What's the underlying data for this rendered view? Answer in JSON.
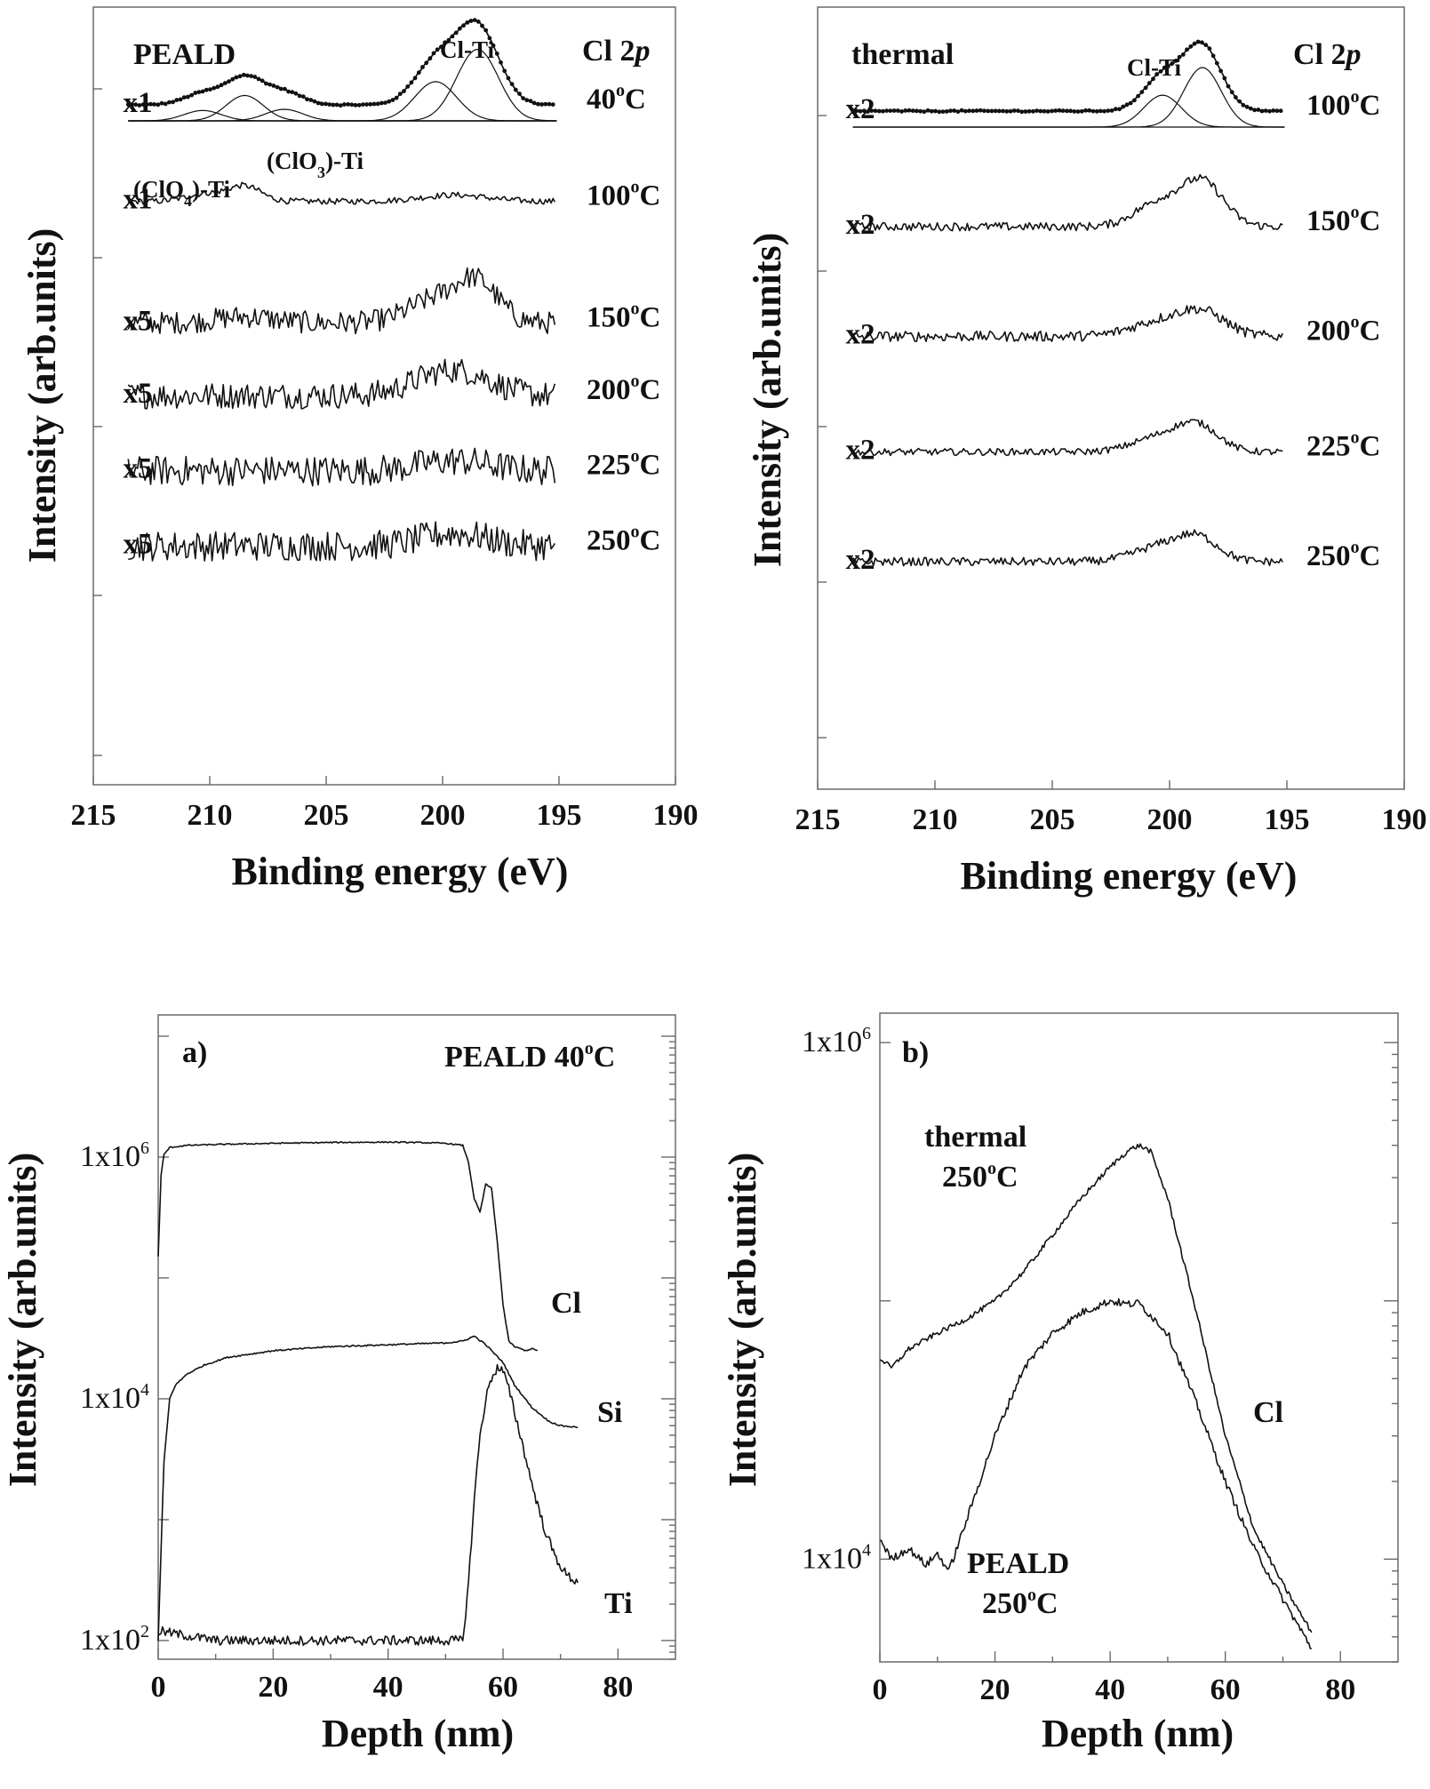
{
  "chart_data": [
    {
      "type": "line",
      "panel": "top-left",
      "xlabel": "Binding energy (eV)",
      "ylabel": "Intensity (arb.units)",
      "xlim": [
        215,
        190
      ],
      "x_ticks": [
        "215",
        "210",
        "205",
        "200",
        "195",
        "190"
      ],
      "title": "PEALD",
      "title_right": "Cl 2p",
      "title_right_main": "Cl 2",
      "title_right_italic": "p",
      "peak_labels": {
        "clti": "Cl-Ti",
        "clo4": {
          "pre": "(ClO",
          "sub": "4",
          "post": ")-Ti"
        },
        "clo3": {
          "pre": "(ClO",
          "sub": "3",
          "post": ")-Ti"
        }
      },
      "series": [
        {
          "name": "40°C",
          "temp": "40",
          "scale": "x1",
          "baseline": 0.78,
          "peaks": [
            [
              198.5,
              0.62,
              0.9
            ],
            [
              200.3,
              0.34,
              0.9
            ],
            [
              208.5,
              0.22,
              0.8
            ],
            [
              210.3,
              0.09,
              0.8
            ],
            [
              206.8,
              0.1,
              0.8
            ]
          ],
          "noise": 0.006
        },
        {
          "name": "100°C",
          "temp": "100",
          "scale": "x1",
          "baseline": 1.55,
          "peaks": [
            [
              208.5,
              0.12,
              0.7
            ],
            [
              210.2,
              0.06,
              0.8
            ],
            [
              199.5,
              0.05,
              1.4
            ]
          ],
          "noise": 0.008
        },
        {
          "name": "150°C",
          "temp": "150",
          "scale": "x5",
          "baseline": 2.52,
          "peaks": [
            [
              198.5,
              0.3,
              0.9
            ],
            [
              200.3,
              0.18,
              1.2
            ],
            [
              208.5,
              0.05,
              1.2
            ]
          ],
          "noise": 0.03
        },
        {
          "name": "200°C",
          "temp": "200",
          "scale": "x5",
          "baseline": 3.1,
          "peaks": [
            [
              198.8,
              0.14,
              1.2
            ],
            [
              200.5,
              0.12,
              1.2
            ]
          ],
          "noise": 0.035
        },
        {
          "name": "225°C",
          "temp": "225",
          "scale": "x5",
          "baseline": 3.7,
          "peaks": [
            [
              199.5,
              0.08,
              1.5
            ]
          ],
          "noise": 0.04
        },
        {
          "name": "250°C",
          "temp": "250",
          "scale": "x5",
          "baseline": 4.3,
          "peaks": [
            [
              199.5,
              0.1,
              1.4
            ]
          ],
          "noise": 0.04
        }
      ]
    },
    {
      "type": "line",
      "panel": "top-right",
      "xlabel": "Binding energy (eV)",
      "ylabel": "Intensity (arb.units)",
      "xlim": [
        215,
        190
      ],
      "x_ticks": [
        "215",
        "210",
        "205",
        "200",
        "195",
        "190"
      ],
      "title": "thermal",
      "title_right": "Cl 2p",
      "title_right_main": "Cl 2",
      "title_right_italic": "p",
      "peak_labels": {
        "clti": "Cl-Ti"
      },
      "series": [
        {
          "name": "100°C",
          "temp": "100",
          "scale": "x2",
          "baseline": 0.9,
          "peaks": [
            [
              198.6,
              0.56,
              0.8
            ],
            [
              200.3,
              0.3,
              0.8
            ]
          ],
          "noise": 0.006
        },
        {
          "name": "150°C",
          "temp": "150",
          "scale": "x2",
          "baseline": 1.9,
          "peaks": [
            [
              198.6,
              0.38,
              0.9
            ],
            [
              200.5,
              0.2,
              1.0
            ]
          ],
          "noise": 0.012
        },
        {
          "name": "200°C",
          "temp": "200",
          "scale": "x2",
          "baseline": 2.85,
          "peaks": [
            [
              198.6,
              0.2,
              1.0
            ],
            [
              200.5,
              0.12,
              1.2
            ]
          ],
          "noise": 0.015
        },
        {
          "name": "225°C",
          "temp": "225",
          "scale": "x2",
          "baseline": 3.85,
          "peaks": [
            [
              198.8,
              0.22,
              0.9
            ],
            [
              200.5,
              0.12,
              1.1
            ]
          ],
          "noise": 0.01
        },
        {
          "name": "250°C",
          "temp": "250",
          "scale": "x2",
          "baseline": 4.8,
          "peaks": [
            [
              198.8,
              0.2,
              0.9
            ],
            [
              200.5,
              0.12,
              1.1
            ]
          ],
          "noise": 0.012
        }
      ]
    },
    {
      "type": "line",
      "panel": "bottom-left",
      "label": "a)",
      "annotation": {
        "pre": "PEALD 40",
        "sup": "o",
        "post": "C"
      },
      "xlabel": "Depth (nm)",
      "ylabel": "Intensity (arb.units)",
      "xlim": [
        0,
        90
      ],
      "x_ticks": [
        0,
        20,
        40,
        60,
        80
      ],
      "y_scale": "log",
      "ylim": [
        70,
        15000000
      ],
      "y_ticks": [
        {
          "value": 100,
          "mantissa": "1x10",
          "exp": "2"
        },
        {
          "value": 10000,
          "mantissa": "1x10",
          "exp": "4"
        },
        {
          "value": 1000000,
          "mantissa": "1x10",
          "exp": "6"
        }
      ],
      "series": [
        {
          "name": "Cl",
          "x": [
            0,
            0.5,
            1,
            2,
            5,
            10,
            20,
            30,
            40,
            45,
            50,
            53,
            54,
            55,
            56,
            57,
            58,
            59,
            60,
            61,
            62,
            63,
            64,
            65,
            66
          ],
          "y": [
            150000,
            700000,
            1050000,
            1200000,
            1250000,
            1270000,
            1300000,
            1320000,
            1330000,
            1320000,
            1300000,
            1250000,
            900000,
            450000,
            350000,
            600000,
            550000,
            200000,
            60000,
            30000,
            27000,
            26000,
            25000,
            26000,
            25000
          ]
        },
        {
          "name": "Si",
          "x": [
            0,
            1,
            2,
            3,
            5,
            8,
            12,
            20,
            30,
            40,
            50,
            53,
            55,
            57,
            60,
            62,
            65,
            68,
            70,
            73
          ],
          "y": [
            100,
            3000,
            10000,
            13000,
            16000,
            19000,
            22000,
            25000,
            27000,
            28000,
            29000,
            30000,
            33000,
            28000,
            20000,
            13000,
            8500,
            6500,
            6000,
            5800
          ]
        },
        {
          "name": "Ti",
          "x": [
            0,
            10,
            20,
            30,
            40,
            50,
            53,
            54,
            55,
            56,
            57,
            58,
            59,
            60,
            61,
            63,
            65,
            67,
            69,
            71,
            73
          ],
          "y": [
            120,
            100,
            100,
            100,
            100,
            100,
            100,
            300,
            1500,
            5000,
            10000,
            15000,
            18000,
            17000,
            12000,
            5000,
            2000,
            900,
            500,
            350,
            300
          ]
        }
      ]
    },
    {
      "type": "line",
      "panel": "bottom-right",
      "label": "b)",
      "xlabel": "Depth (nm)",
      "ylabel": "Intensity (arb.units)",
      "xlim": [
        0,
        90
      ],
      "x_ticks": [
        0,
        20,
        40,
        60,
        80
      ],
      "y_scale": "log",
      "ylim": [
        4000,
        1300000
      ],
      "y_ticks": [
        {
          "value": 10000,
          "mantissa": "1x10",
          "exp": "4"
        },
        {
          "value": 1000000,
          "mantissa": "1x10",
          "exp": "6"
        }
      ],
      "series_label_cl": "Cl",
      "series": [
        {
          "name": "thermal 250°C",
          "label_line1": "thermal",
          "label_temp": "250",
          "x": [
            0,
            2,
            5,
            10,
            15,
            20,
            25,
            30,
            35,
            40,
            43,
            45,
            47,
            50,
            55,
            60,
            65,
            70,
            75
          ],
          "y": [
            60000,
            55000,
            65000,
            75000,
            85000,
            100000,
            130000,
            180000,
            250000,
            330000,
            380000,
            400000,
            380000,
            250000,
            90000,
            30000,
            13000,
            8000,
            5200
          ]
        },
        {
          "name": "PEALD 250°C",
          "label_line1": "PEALD",
          "label_temp": "250",
          "x": [
            0,
            2,
            5,
            8,
            10,
            12,
            15,
            20,
            25,
            30,
            35,
            40,
            43,
            45,
            50,
            55,
            60,
            65,
            70,
            75
          ],
          "y": [
            12000,
            10000,
            11000,
            9500,
            10500,
            9000,
            14000,
            30000,
            55000,
            75000,
            90000,
            100000,
            97000,
            98000,
            75000,
            40000,
            20000,
            11000,
            7000,
            4500
          ]
        }
      ]
    }
  ],
  "temp_suffix_sup": "o",
  "temp_suffix_c": "C"
}
